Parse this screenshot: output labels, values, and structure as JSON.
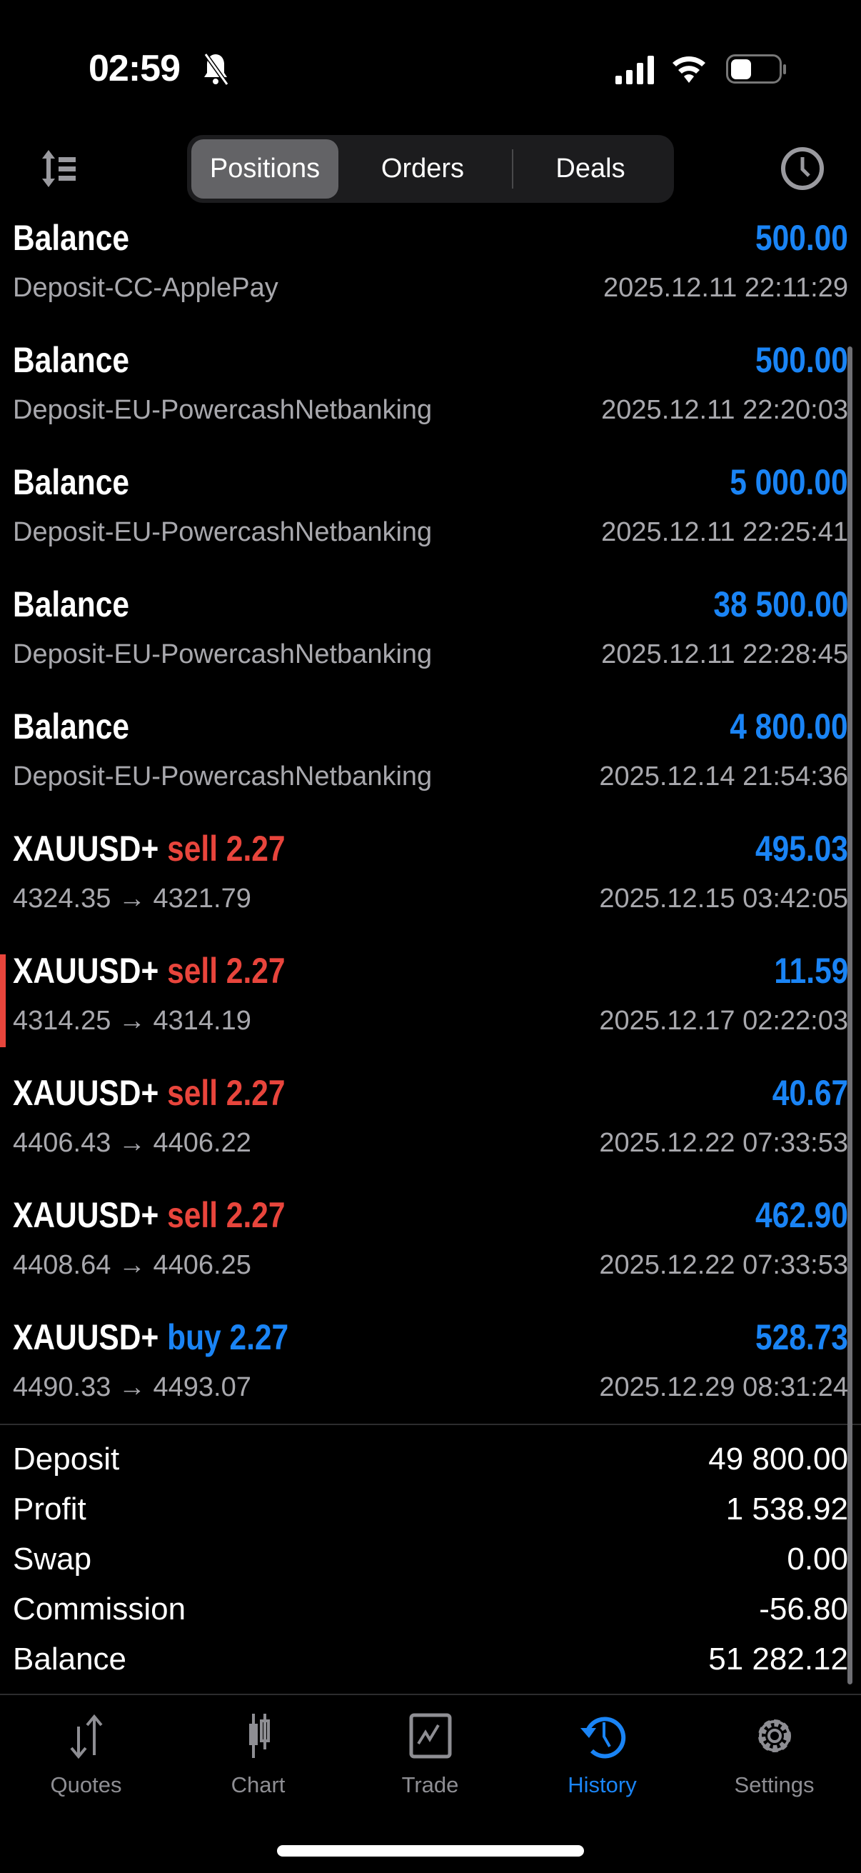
{
  "status": {
    "time": "02:59",
    "icons": [
      "bell-slash-icon",
      "signal-icon",
      "wifi-icon",
      "battery-icon"
    ]
  },
  "header": {
    "tabs": [
      "Positions",
      "Orders",
      "Deals"
    ],
    "active_tab": "Positions",
    "left_icon": "sort-icon",
    "right_icon": "clock-icon"
  },
  "rows": [
    {
      "title": "Balance",
      "sub": "Deposit-CC-ApplePay",
      "amount": "500.00",
      "date": "2025.12.11 22:11:29"
    },
    {
      "title": "Balance",
      "sub": "Deposit-EU-PowercashNetbanking",
      "amount": "500.00",
      "date": "2025.12.11 22:20:03"
    },
    {
      "title": "Balance",
      "sub": "Deposit-EU-PowercashNetbanking",
      "amount": "5 000.00",
      "date": "2025.12.11 22:25:41"
    },
    {
      "title": "Balance",
      "sub": "Deposit-EU-PowercashNetbanking",
      "amount": "38 500.00",
      "date": "2025.12.11 22:28:45"
    },
    {
      "title": "Balance",
      "sub": "Deposit-EU-PowercashNetbanking",
      "amount": "4 800.00",
      "date": "2025.12.14 21:54:36"
    },
    {
      "title": "XAUUSD+",
      "side": "sell 2.27",
      "sub": "4324.35 → 4321.79",
      "amount": "495.03",
      "date": "2025.12.15 03:42:05"
    },
    {
      "title": "XAUUSD+",
      "side": "sell 2.27",
      "sub": "4314.25 → 4314.19",
      "amount": "11.59",
      "date": "2025.12.17 02:22:03"
    },
    {
      "title": "XAUUSD+",
      "side": "sell 2.27",
      "sub": "4406.43 → 4406.22",
      "amount": "40.67",
      "date": "2025.12.22 07:33:53"
    },
    {
      "title": "XAUUSD+",
      "side": "sell 2.27",
      "sub": "4408.64 → 4406.25",
      "amount": "462.90",
      "date": "2025.12.22 07:33:53"
    },
    {
      "title": "XAUUSD+",
      "side": "buy 2.27",
      "sub": "4490.33 → 4493.07",
      "amount": "528.73",
      "date": "2025.12.29 08:31:24"
    }
  ],
  "summary": [
    {
      "label": "Deposit",
      "value": "49 800.00"
    },
    {
      "label": "Profit",
      "value": "1 538.92"
    },
    {
      "label": "Swap",
      "value": "0.00"
    },
    {
      "label": "Commission",
      "value": "-56.80"
    },
    {
      "label": "Balance",
      "value": "51 282.12"
    }
  ],
  "tabbar": [
    {
      "label": "Quotes",
      "icon": "quotes-arrows-icon"
    },
    {
      "label": "Chart",
      "icon": "candlestick-icon"
    },
    {
      "label": "Trade",
      "icon": "trade-chart-icon"
    },
    {
      "label": "History",
      "icon": "history-icon",
      "active": true
    },
    {
      "label": "Settings",
      "icon": "gear-icon"
    }
  ],
  "colors": {
    "accent": "#1a84f5",
    "sell": "#e8453c",
    "background": "#000000"
  }
}
